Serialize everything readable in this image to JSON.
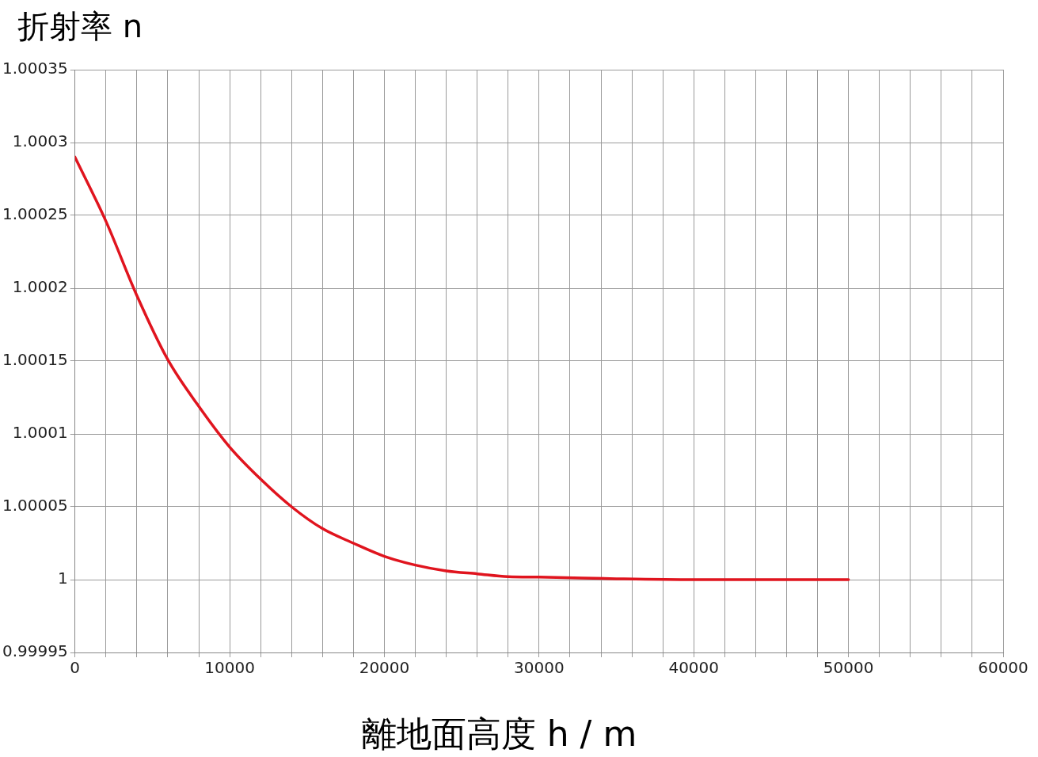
{
  "chart_data": {
    "type": "line",
    "xlabel": "離地面高度 h / m",
    "ylabel": "折射率 n",
    "series": [
      {
        "color": "#e0141e",
        "x": [
          0,
          2000,
          4000,
          6000,
          8000,
          10000,
          12000,
          14000,
          16000,
          18000,
          20000,
          22000,
          24000,
          26000,
          28000,
          30000,
          35000,
          40000,
          50000
        ],
        "values": [
          1.00029,
          1.000246,
          1.000195,
          1.000151,
          1.000119,
          1.000091,
          1.000069,
          1.00005,
          1.000035,
          1.000025,
          1.000016,
          1.00001,
          1.000006,
          1.000004,
          1.000002,
          1.0000017,
          1.0000006,
          1,
          1
        ]
      }
    ],
    "xlim": [
      0,
      60000
    ],
    "ylim": [
      0.99995,
      1.00035
    ],
    "xticks": [
      0,
      {
        "value": 2000,
        "label": null
      },
      {
        "value": 4000,
        "label": null
      },
      {
        "value": 6000,
        "label": null
      },
      {
        "value": 8000,
        "label": null
      },
      10000,
      {
        "value": 12000,
        "label": null
      },
      {
        "value": 14000,
        "label": null
      },
      {
        "value": 16000,
        "label": null
      },
      {
        "value": 18000,
        "label": null
      },
      20000,
      {
        "value": 22000,
        "label": null
      },
      {
        "value": 24000,
        "label": null
      },
      {
        "value": 26000,
        "label": null
      },
      {
        "value": 28000,
        "label": null
      },
      30000,
      {
        "value": 32000,
        "label": null
      },
      {
        "value": 34000,
        "label": null
      },
      {
        "value": 36000,
        "label": null
      },
      {
        "value": 38000,
        "label": null
      },
      40000,
      {
        "value": 42000,
        "label": null
      },
      {
        "value": 44000,
        "label": null
      },
      {
        "value": 46000,
        "label": null
      },
      {
        "value": 48000,
        "label": null
      },
      50000,
      {
        "value": 52000,
        "label": null
      },
      {
        "value": 54000,
        "label": null
      },
      {
        "value": 56000,
        "label": null
      },
      {
        "value": 58000,
        "label": null
      },
      60000
    ],
    "yticks": [
      0.99995,
      1,
      1.00005,
      1.0001,
      1.00015,
      1.0002,
      1.00025,
      1.0003,
      1.00035
    ],
    "grid": true,
    "legend": false,
    "marker": "none",
    "line_style": "solid"
  }
}
